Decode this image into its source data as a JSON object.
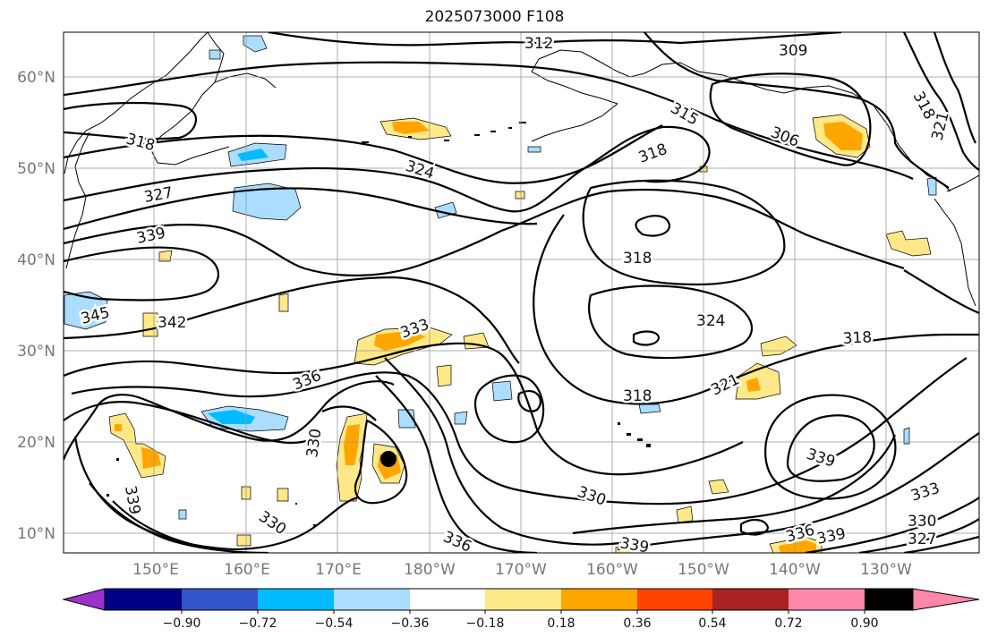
{
  "title": "2025073000 F108",
  "lat_labels": [
    "60°N",
    "50°N",
    "40°N",
    "30°N",
    "20°N",
    "10°N"
  ],
  "lon_labels": [
    "150°E",
    "160°E",
    "170°E",
    "180°W",
    "170°W",
    "160°W",
    "150°W",
    "140°W",
    "130°W"
  ],
  "colorbar": {
    "colors": [
      "#9933cc",
      "#000088",
      "#3355cc",
      "#00bbff",
      "#aaddff",
      "#ffffff",
      "#ffe888",
      "#ffa500",
      "#ff4400",
      "#aa2222",
      "#ff88aa"
    ],
    "tick_labels": [
      "−0.90",
      "−0.72",
      "−0.54",
      "−0.36",
      "−0.18",
      "0.18",
      "0.36",
      "0.54",
      "0.72",
      "0.90"
    ]
  },
  "contour_labels": [
    "312",
    "309",
    "318",
    "321",
    "315",
    "306",
    "318",
    "324",
    "318",
    "327",
    "339",
    "318",
    "345",
    "342",
    "333",
    "324",
    "318",
    "336",
    "321",
    "318",
    "330",
    "339",
    "339",
    "330",
    "330",
    "336",
    "339",
    "336",
    "339",
    "333",
    "330",
    "327"
  ],
  "colors": {
    "contour": "#000000",
    "coast": "#000000",
    "grid": "#999999",
    "marker": "#000000"
  }
}
